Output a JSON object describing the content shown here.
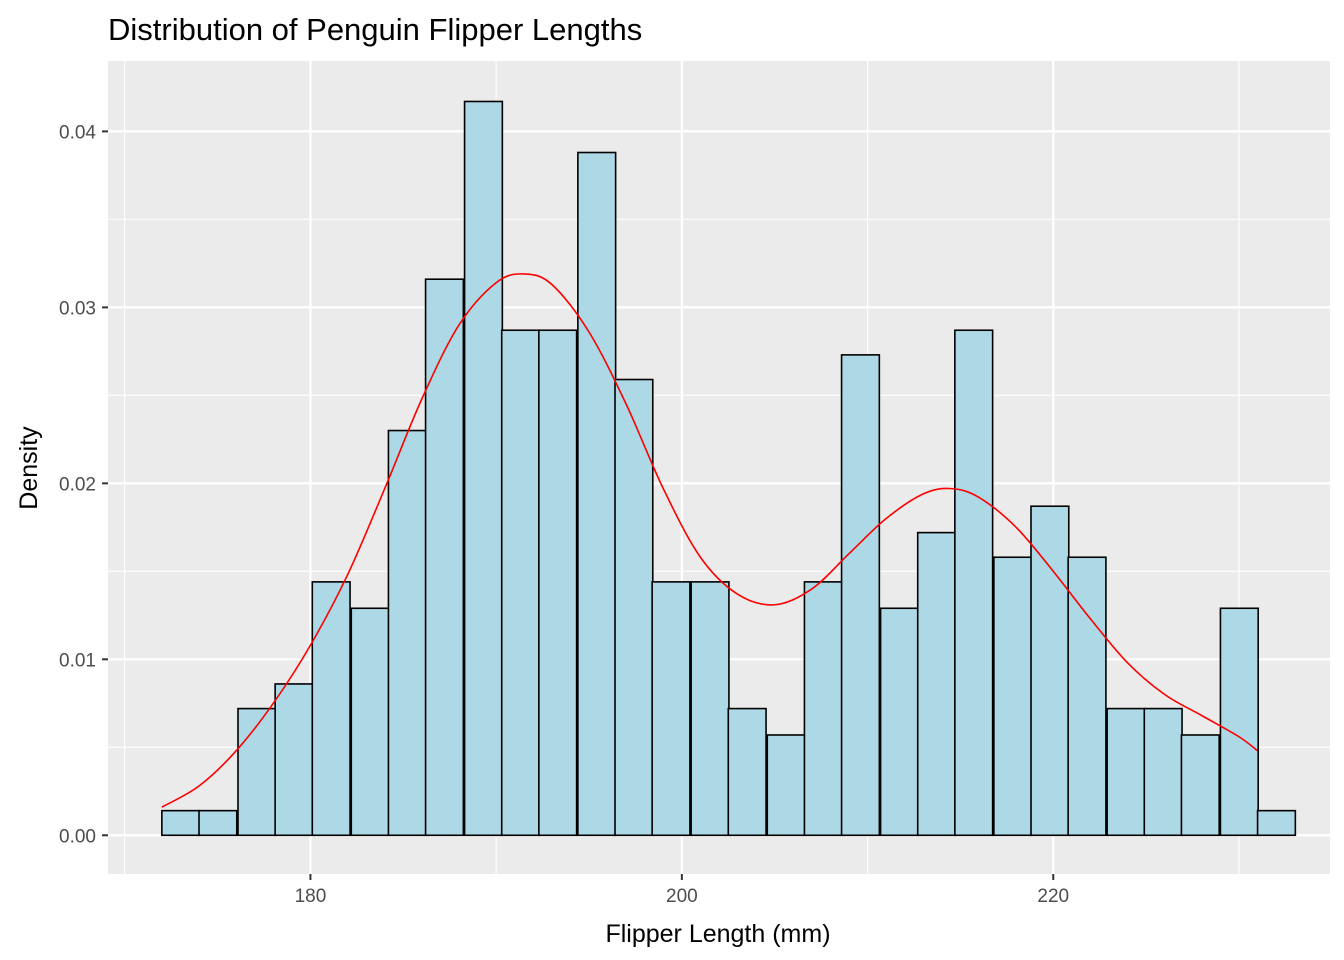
{
  "chart_data": {
    "type": "histogram",
    "title": "Distribution of Penguin Flipper Lengths",
    "xlabel": "Flipper Length (mm)",
    "ylabel": "Density",
    "xlim": [
      169.1,
      234.9
    ],
    "ylim": [
      -0.0022,
      0.044
    ],
    "x_ticks": [
      180,
      200,
      220
    ],
    "x_tick_labels": [
      "180",
      "200",
      "220"
    ],
    "y_ticks": [
      0,
      0.01,
      0.02,
      0.03,
      0.04
    ],
    "y_tick_labels": [
      "0.00",
      "0.01",
      "0.02",
      "0.03",
      "0.04"
    ],
    "grid": true,
    "bin_width": 2.034,
    "bins": [
      {
        "x0": 172.0,
        "density": 0.0014
      },
      {
        "x0": 174.0,
        "density": 0.0014
      },
      {
        "x0": 176.1,
        "density": 0.0072
      },
      {
        "x0": 178.1,
        "density": 0.0086
      },
      {
        "x0": 180.1,
        "density": 0.0144
      },
      {
        "x0": 182.2,
        "density": 0.0129
      },
      {
        "x0": 184.2,
        "density": 0.023
      },
      {
        "x0": 186.2,
        "density": 0.0316
      },
      {
        "x0": 188.3,
        "density": 0.0417
      },
      {
        "x0": 190.3,
        "density": 0.0287
      },
      {
        "x0": 192.3,
        "density": 0.0287
      },
      {
        "x0": 194.4,
        "density": 0.0388
      },
      {
        "x0": 196.4,
        "density": 0.0259
      },
      {
        "x0": 198.4,
        "density": 0.0144
      },
      {
        "x0": 200.5,
        "density": 0.0144
      },
      {
        "x0": 202.5,
        "density": 0.0072
      },
      {
        "x0": 204.6,
        "density": 0.0057
      },
      {
        "x0": 206.6,
        "density": 0.0144
      },
      {
        "x0": 208.6,
        "density": 0.0273
      },
      {
        "x0": 210.7,
        "density": 0.0129
      },
      {
        "x0": 212.7,
        "density": 0.0172
      },
      {
        "x0": 214.7,
        "density": 0.0287
      },
      {
        "x0": 216.8,
        "density": 0.0158
      },
      {
        "x0": 218.8,
        "density": 0.0187
      },
      {
        "x0": 220.8,
        "density": 0.0158
      },
      {
        "x0": 222.9,
        "density": 0.0072
      },
      {
        "x0": 224.9,
        "density": 0.0072
      },
      {
        "x0": 226.9,
        "density": 0.0057
      },
      {
        "x0": 229.0,
        "density": 0.0129
      },
      {
        "x0": 231.0,
        "density": 0.0014
      }
    ],
    "density_curve": {
      "x": [
        172,
        174,
        176,
        178,
        180,
        182,
        184,
        186,
        188,
        190,
        191.5,
        193,
        195,
        197,
        199,
        201,
        203,
        205,
        207,
        209,
        211,
        213,
        214.5,
        216,
        218,
        220,
        222,
        224,
        226,
        228,
        230,
        231
      ],
      "y": [
        0.0016,
        0.0028,
        0.0048,
        0.0075,
        0.0108,
        0.0148,
        0.0197,
        0.0248,
        0.029,
        0.0314,
        0.0319,
        0.0313,
        0.0286,
        0.0245,
        0.0197,
        0.0158,
        0.0137,
        0.0131,
        0.014,
        0.016,
        0.018,
        0.0194,
        0.0197,
        0.0192,
        0.0175,
        0.015,
        0.0123,
        0.0098,
        0.008,
        0.0068,
        0.0056,
        0.0048
      ]
    },
    "colors": {
      "panel_background": "#ebebeb",
      "grid": "#ffffff",
      "bar_fill": "#add8e6",
      "bar_outline": "#000000",
      "density_line": "#ff0000",
      "tick_label": "#4d4d4d",
      "tick_mark": "#333333"
    }
  }
}
